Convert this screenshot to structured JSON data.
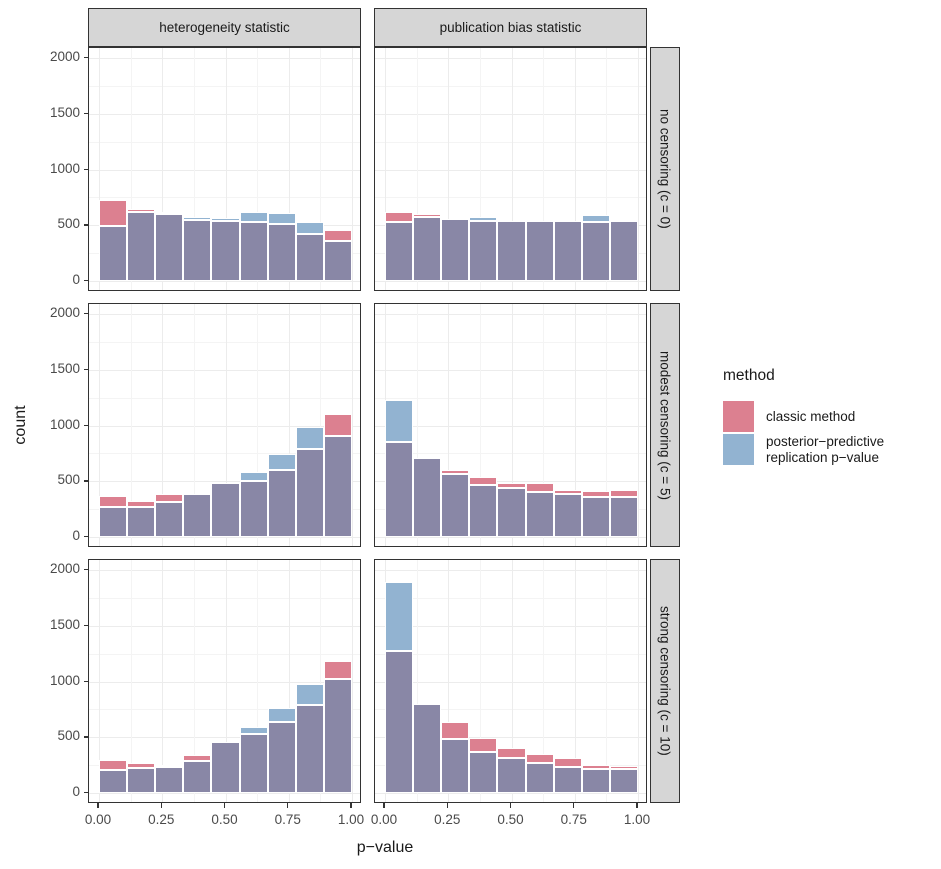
{
  "figure": {
    "x_axis_title": "p−value",
    "y_axis_title": "count"
  },
  "facets": {
    "cols": [
      "heterogeneity statistic",
      "publication bias statistic"
    ],
    "rows": [
      "no censoring (c = 0)",
      "modest censoring (c = 5)",
      "strong censoring (c = 10)"
    ]
  },
  "legend": {
    "title": "method",
    "items": [
      {
        "label": "classic method",
        "color": "#DC8090"
      },
      {
        "label": "posterior−predictive\n replication p−value",
        "color": "#92B3D1"
      }
    ]
  },
  "colors": {
    "classic": "#DC8090",
    "posterior_predictive": "#92B3D1",
    "overlap": "#8987A6",
    "strip_bg": "#D6D6D6",
    "panel_border": "#333333",
    "grid_major": "#ECECEC",
    "grid_minor": "#F4F4F4"
  },
  "chart_data": {
    "type": "bar",
    "subtype": "overlaid-histograms-2x-series-3x2-facets",
    "title": "",
    "xlabel": "p−value",
    "ylabel": "count",
    "ylim": [
      0,
      2000
    ],
    "grid": true,
    "legend_position": "right",
    "bin_edges": [
      0,
      0.111,
      0.222,
      0.333,
      0.444,
      0.556,
      0.667,
      0.778,
      0.889,
      1.0
    ],
    "x_ticks": {
      "values": [
        0,
        0.25,
        0.5,
        0.75,
        1
      ],
      "labels": [
        "0.00",
        "0.25",
        "0.50",
        "0.75",
        "1.00"
      ]
    },
    "y_ticks": {
      "values": [
        0,
        500,
        1000,
        1500,
        2000
      ],
      "labels": [
        "0",
        "500",
        "1000",
        "1500",
        "2000"
      ]
    },
    "y_minor_ticks": [
      250,
      750,
      1250,
      1750
    ],
    "x_minor_ticks": [
      0.125,
      0.375,
      0.625,
      0.875
    ],
    "series_names": [
      "classic method",
      "posterior-predictive replication p-value"
    ],
    "panels": [
      {
        "facet_col": "heterogeneity statistic",
        "facet_row": "no censoring (c = 0)",
        "classic": [
          725,
          645,
          615,
          550,
          535,
          525,
          515,
          425,
          455
        ],
        "posterior_predictive": [
          490,
          620,
          600,
          570,
          565,
          615,
          610,
          530,
          355
        ]
      },
      {
        "facet_col": "publication bias statistic",
        "facet_row": "no censoring (c = 0)",
        "classic": [
          615,
          605,
          560,
          535,
          535,
          540,
          545,
          525,
          535
        ],
        "posterior_predictive": [
          530,
          570,
          565,
          570,
          535,
          550,
          535,
          595,
          535
        ]
      },
      {
        "facet_col": "heterogeneity statistic",
        "facet_row": "modest censoring (c = 5)",
        "classic": [
          365,
          325,
          385,
          400,
          480,
          500,
          605,
          790,
          1105
        ],
        "posterior_predictive": [
          270,
          270,
          310,
          390,
          490,
          585,
          740,
          985,
          905
        ]
      },
      {
        "facet_col": "publication bias statistic",
        "facet_row": "modest censoring (c = 5)",
        "classic": [
          855,
          715,
          605,
          535,
          480,
          485,
          420,
          415,
          425
        ],
        "posterior_predictive": [
          1230,
          705,
          565,
          465,
          435,
          405,
          390,
          355,
          355
        ]
      },
      {
        "facet_col": "heterogeneity statistic",
        "facet_row": "strong censoring (c = 10)",
        "classic": [
          300,
          265,
          255,
          345,
          460,
          525,
          635,
          790,
          1185
        ],
        "posterior_predictive": [
          210,
          225,
          235,
          285,
          465,
          590,
          765,
          975,
          1020
        ]
      },
      {
        "facet_col": "publication bias statistic",
        "facet_row": "strong censoring (c = 10)",
        "classic": [
          1270,
          810,
          640,
          495,
          405,
          350,
          310,
          250,
          245
        ],
        "posterior_predictive": [
          1890,
          800,
          485,
          370,
          315,
          265,
          235,
          215,
          215
        ]
      }
    ]
  }
}
